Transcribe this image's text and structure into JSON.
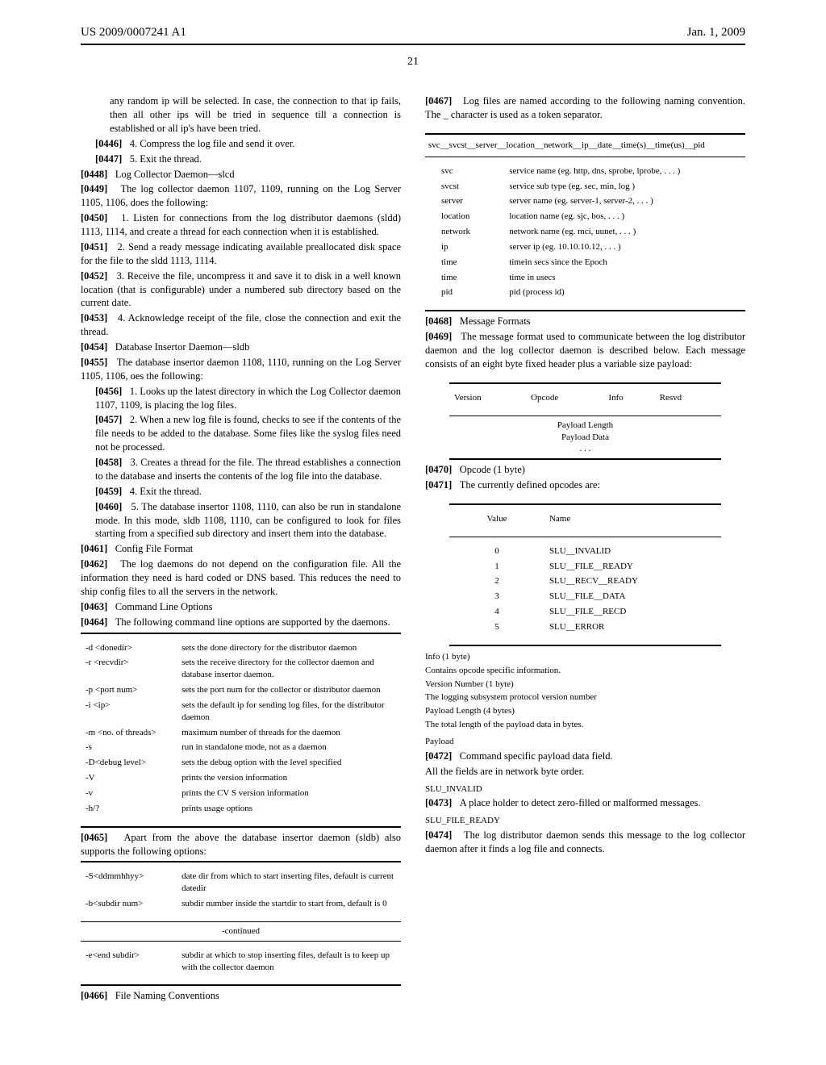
{
  "header": {
    "left": "US 2009/0007241 A1",
    "right": "Jan. 1, 2009"
  },
  "page_number": "21",
  "col1": {
    "lead_text": "any random ip will be selected. In case, the connection to that ip fails, then all other ips will be tried in sequence till a connection is established or all ip's have been tried.",
    "p0446": {
      "num": "[0446]",
      "text": "4. Compress the log file and send it over."
    },
    "p0447": {
      "num": "[0447]",
      "text": "5. Exit the thread."
    },
    "p0448": {
      "num": "[0448]",
      "text": "Log Collector Daemon—slcd"
    },
    "p0449": {
      "num": "[0449]",
      "text": "The log collector daemon 1107, 1109, running on the Log Server 1105, 1106, does the following:"
    },
    "p0450": {
      "num": "[0450]",
      "text": "1. Listen for connections from the log distributor daemons (sldd) 1113, 1114, and create a thread for each connection when it is established."
    },
    "p0451": {
      "num": "[0451]",
      "text": "2. Send a ready message indicating available preallocated disk space for the file to the sldd 1113, 1114."
    },
    "p0452": {
      "num": "[0452]",
      "text": "3. Receive the file, uncompress it and save it to disk in a well known location (that is configurable) under a numbered sub directory based on the current date."
    },
    "p0453": {
      "num": "[0453]",
      "text": "4. Acknowledge receipt of the file, close the connection and exit the thread."
    },
    "p0454": {
      "num": "[0454]",
      "text": "Database Insertor Daemon—sldb"
    },
    "p0455": {
      "num": "[0455]",
      "text": "The database insertor daemon 1108, 1110, running on the Log Server 1105, 1106, oes the following:"
    },
    "p0456": {
      "num": "[0456]",
      "text": "1. Looks up the latest directory in which the Log Collector daemon 1107, 1109, is placing the log files."
    },
    "p0457": {
      "num": "[0457]",
      "text": "2. When a new log file is found, checks to see if the contents of the file needs to be added to the database. Some files like the syslog files need not be processed."
    },
    "p0458": {
      "num": "[0458]",
      "text": "3. Creates a thread for the file. The thread establishes a connection to the database and inserts the contents of the log file into the database."
    },
    "p0459": {
      "num": "[0459]",
      "text": "4. Exit the thread."
    },
    "p0460": {
      "num": "[0460]",
      "text": "5. The database insertor 1108, 1110, can also be run in standalone mode. In this mode, sldb 1108, 1110, can be configured to look for files starting from a specified sub directory and insert them into the database."
    },
    "p0461": {
      "num": "[0461]",
      "text": "Config File Format"
    },
    "p0462": {
      "num": "[0462]",
      "text": "The log daemons do not depend on the configuration file. All the information they need is hard coded or DNS based. This reduces the need to ship config files to all the servers in the network."
    },
    "p0463": {
      "num": "[0463]",
      "text": "Command Line Options"
    },
    "p0464": {
      "num": "[0464]",
      "text": "The following command line options are supported by the daemons."
    },
    "cmdopts": [
      {
        "flag": "-d <donedir>",
        "desc": "sets the done directory for the distributor daemon"
      },
      {
        "flag": "-r <recvdir>",
        "desc": "sets the receive directory for the collector daemon and database insertor daemon."
      },
      {
        "flag": "-p <port num>",
        "desc": "sets the port num for the collector or distributor daemon"
      },
      {
        "flag": "-i <ip>",
        "desc": "sets the default ip for sending log files, for the distributor daemon"
      },
      {
        "flag": "-m <no. of threads>",
        "desc": "maximum number of threads for the daemon"
      },
      {
        "flag": "-s",
        "desc": "run in standalone mode, not as a daemon"
      },
      {
        "flag": "-D<debug level>",
        "desc": "sets the debug option with the level specified"
      },
      {
        "flag": "-V",
        "desc": "prints the version information"
      },
      {
        "flag": "-v",
        "desc": "prints the CV S version information"
      },
      {
        "flag": "-h/?",
        "desc": "prints usage options"
      }
    ],
    "p0465": {
      "num": "[0465]",
      "text": "Apart from the above the database insertor daemon (sldb) also supports the following options:"
    },
    "sldbopts": [
      {
        "flag": "-S<ddmmhhyy>",
        "desc": "date dir from which to start inserting files, default is current datedir"
      },
      {
        "flag": "-b<subdir num>",
        "desc": "subdir number inside the startdir to start from, default is 0"
      }
    ]
  },
  "col2": {
    "cont_title": "-continued",
    "contopts": [
      {
        "flag": "-e<end subdir>",
        "desc": "subdir at which to stop inserting files, default is to keep up with the collector daemon"
      }
    ],
    "p0466": {
      "num": "[0466]",
      "text": "File Naming Conventions"
    },
    "p0467": {
      "num": "[0467]",
      "text": "Log files are named according to the following naming convention. The _ character is used as a token separator."
    },
    "naming_header": "svc__svcst__server__location__network__ip__date__time(s)__time(us)__pid",
    "naming_rows": [
      {
        "k": "svc",
        "v": "service name (eg. http, dns, sprobe, lprobe, . . . )"
      },
      {
        "k": "svcst",
        "v": "service sub type (eg. sec, min, log      )"
      },
      {
        "k": "server",
        "v": "server name (eg. server-1, server-2, . . . )"
      },
      {
        "k": "location",
        "v": "location name (eg. sjc, bos, . . . )"
      },
      {
        "k": "network",
        "v": "network name (eg. mci, uunet, . . . )"
      },
      {
        "k": "ip",
        "v": "server ip (eg. 10.10.10.12, . . . )"
      },
      {
        "k": "time",
        "v": "timein secs since the Epoch"
      },
      {
        "k": "time",
        "v": "time in usecs"
      },
      {
        "k": "pid",
        "v": "pid (process id)"
      }
    ],
    "p0468": {
      "num": "[0468]",
      "text": "Message Formats"
    },
    "p0469": {
      "num": "[0469]",
      "text": "The message format used to communicate between the log distributor daemon and the log collector daemon is described below. Each message consists of an eight byte fixed header plus a variable size payload:"
    },
    "msg_header": [
      "Version",
      "Opcode",
      "Info",
      "Resvd"
    ],
    "msg_sub": [
      "Payload Length",
      "Payload Data",
      ". . ."
    ],
    "p0470": {
      "num": "[0470]",
      "text": "Opcode (1 byte)"
    },
    "p0471": {
      "num": "[0471]",
      "text": "The currently defined opcodes are:"
    },
    "opcodes_header": [
      "Value",
      "Name"
    ],
    "opcodes": [
      {
        "v": "0",
        "n": "SLU__INVALID"
      },
      {
        "v": "1",
        "n": "SLU__FILE__READY"
      },
      {
        "v": "2",
        "n": "SLU__RECV__READY"
      },
      {
        "v": "3",
        "n": "SLU__FILE__DATA"
      },
      {
        "v": "4",
        "n": "SLU__FILE__RECD"
      },
      {
        "v": "5",
        "n": "SLU__ERROR"
      }
    ],
    "info_text": [
      "Info (1 byte)",
      "Contains opcode specific information.",
      "Version Number (1 byte)",
      "The logging subsystem protocol version number",
      "Payload Length (4 bytes)",
      "The total length of the payload data in bytes."
    ],
    "payload_title": "Payload",
    "p0472": {
      "num": "[0472]",
      "text": "Command specific payload data field."
    },
    "payload_note": "All the fields are in network byte order.",
    "slu_invalid_title": "SLU_INVALID",
    "p0473": {
      "num": "[0473]",
      "text": "A place holder to detect zero-filled or malformed messages."
    },
    "slu_file_ready_title": "SLU_FILE_READY",
    "p0474": {
      "num": "[0474]",
      "text": "The log distributor daemon sends this message to the log collector daemon after it finds a log file and connects."
    }
  }
}
